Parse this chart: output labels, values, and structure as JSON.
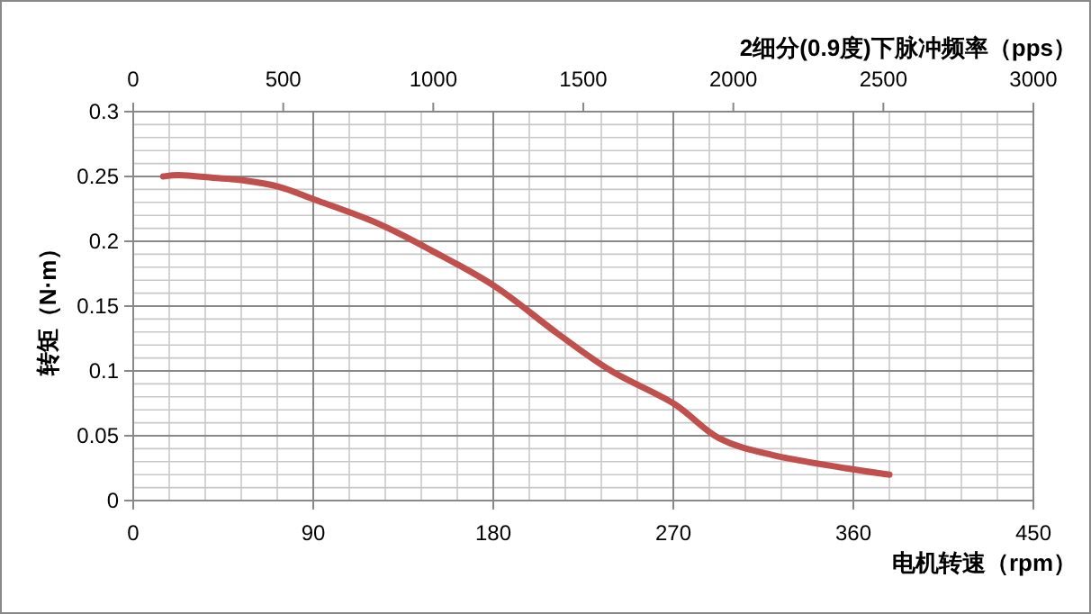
{
  "chart_data": {
    "type": "line",
    "xlabel": "电机转速（rpm）",
    "ylabel": "转矩（N·m）",
    "x2label": "2细分(0.9度)下脉冲频率（pps）",
    "xlim": [
      0,
      450
    ],
    "xticks": [
      0,
      90,
      180,
      270,
      360,
      450
    ],
    "x2lim": [
      0,
      3000
    ],
    "x2ticks": [
      0,
      500,
      1000,
      1500,
      2000,
      2500,
      3000
    ],
    "ylim": [
      0,
      0.3
    ],
    "yticks": [
      0,
      0.05,
      0.1,
      0.15,
      0.2,
      0.25,
      0.3
    ],
    "grid": true,
    "marker": "none",
    "line_style": "solid",
    "series": [
      {
        "color": "#c0504d",
        "x": [
          15,
          23,
          40,
          55,
          73,
          91,
          122,
          149,
          181,
          212,
          239,
          270,
          293,
          320,
          356,
          378
        ],
        "values": [
          0.25,
          0.251,
          0.249,
          0.247,
          0.242,
          0.232,
          0.214,
          0.193,
          0.165,
          0.129,
          0.1,
          0.075,
          0.048,
          0.035,
          0.025,
          0.02
        ]
      }
    ]
  }
}
